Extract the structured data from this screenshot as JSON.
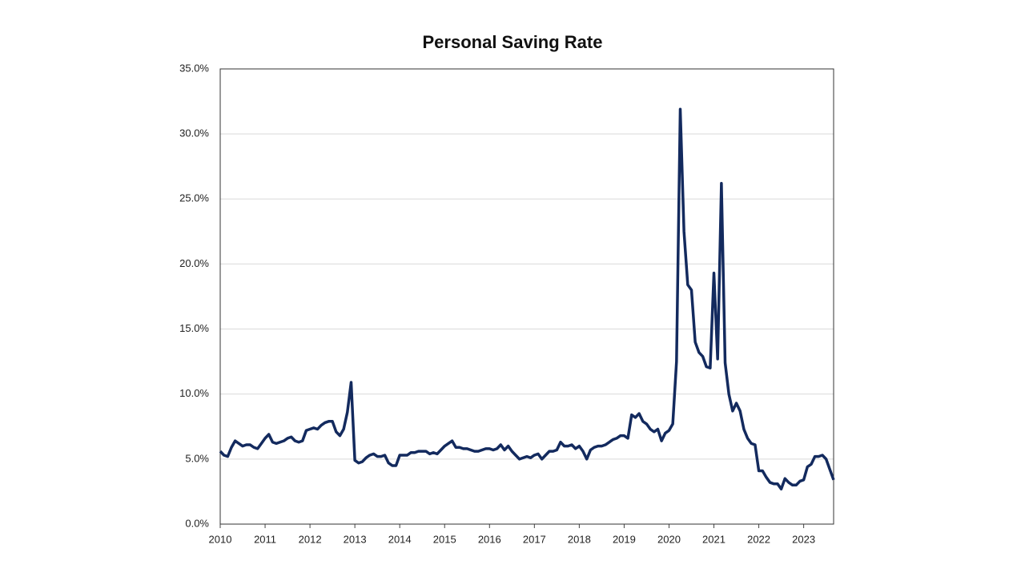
{
  "chart_data": {
    "type": "line",
    "title": "Personal Saving Rate",
    "x": [
      2010,
      2010.083,
      2010.167,
      2010.25,
      2010.333,
      2010.417,
      2010.5,
      2010.583,
      2010.667,
      2010.75,
      2010.833,
      2010.917,
      2011,
      2011.083,
      2011.167,
      2011.25,
      2011.333,
      2011.417,
      2011.5,
      2011.583,
      2011.667,
      2011.75,
      2011.833,
      2011.917,
      2012,
      2012.083,
      2012.167,
      2012.25,
      2012.333,
      2012.417,
      2012.5,
      2012.583,
      2012.667,
      2012.75,
      2012.833,
      2012.917,
      2013,
      2013.083,
      2013.167,
      2013.25,
      2013.333,
      2013.417,
      2013.5,
      2013.583,
      2013.667,
      2013.75,
      2013.833,
      2013.917,
      2014,
      2014.083,
      2014.167,
      2014.25,
      2014.333,
      2014.417,
      2014.5,
      2014.583,
      2014.667,
      2014.75,
      2014.833,
      2014.917,
      2015,
      2015.083,
      2015.167,
      2015.25,
      2015.333,
      2015.417,
      2015.5,
      2015.583,
      2015.667,
      2015.75,
      2015.833,
      2015.917,
      2016,
      2016.083,
      2016.167,
      2016.25,
      2016.333,
      2016.417,
      2016.5,
      2016.583,
      2016.667,
      2016.75,
      2016.833,
      2016.917,
      2017,
      2017.083,
      2017.167,
      2017.25,
      2017.333,
      2017.417,
      2017.5,
      2017.583,
      2017.667,
      2017.75,
      2017.833,
      2017.917,
      2018,
      2018.083,
      2018.167,
      2018.25,
      2018.333,
      2018.417,
      2018.5,
      2018.583,
      2018.667,
      2018.75,
      2018.833,
      2018.917,
      2019,
      2019.083,
      2019.167,
      2019.25,
      2019.333,
      2019.417,
      2019.5,
      2019.583,
      2019.667,
      2019.75,
      2019.833,
      2019.917,
      2020,
      2020.083,
      2020.167,
      2020.25,
      2020.333,
      2020.417,
      2020.5,
      2020.583,
      2020.667,
      2020.75,
      2020.833,
      2020.917,
      2021,
      2021.083,
      2021.167,
      2021.25,
      2021.333,
      2021.417,
      2021.5,
      2021.583,
      2021.667,
      2021.75,
      2021.833,
      2021.917,
      2022,
      2022.083,
      2022.167,
      2022.25,
      2022.333,
      2022.417,
      2022.5,
      2022.583,
      2022.667,
      2022.75,
      2022.833,
      2022.917,
      2023,
      2023.083,
      2023.167,
      2023.25,
      2023.333,
      2023.417,
      2023.5,
      2023.583,
      2023.667
    ],
    "series": [
      {
        "color": "#132a5e",
        "values": [
          5.6,
          5.3,
          5.2,
          5.9,
          6.4,
          6.2,
          6.0,
          6.1,
          6.1,
          5.9,
          5.8,
          6.2,
          6.6,
          6.9,
          6.3,
          6.2,
          6.3,
          6.4,
          6.6,
          6.7,
          6.4,
          6.3,
          6.4,
          7.2,
          7.3,
          7.4,
          7.3,
          7.6,
          7.8,
          7.9,
          7.9,
          7.1,
          6.8,
          7.3,
          8.6,
          10.9,
          4.9,
          4.7,
          4.8,
          5.1,
          5.3,
          5.4,
          5.2,
          5.2,
          5.3,
          4.7,
          4.5,
          4.5,
          5.3,
          5.3,
          5.3,
          5.5,
          5.5,
          5.6,
          5.6,
          5.6,
          5.4,
          5.5,
          5.4,
          5.7,
          6.0,
          6.2,
          6.4,
          5.9,
          5.9,
          5.8,
          5.8,
          5.7,
          5.6,
          5.6,
          5.7,
          5.8,
          5.8,
          5.7,
          5.8,
          6.1,
          5.7,
          6.0,
          5.6,
          5.3,
          5.0,
          5.1,
          5.2,
          5.1,
          5.3,
          5.4,
          5.0,
          5.3,
          5.6,
          5.6,
          5.7,
          6.3,
          6.0,
          6.0,
          6.1,
          5.8,
          6.0,
          5.6,
          5.0,
          5.7,
          5.9,
          6.0,
          6.0,
          6.1,
          6.3,
          6.5,
          6.6,
          6.8,
          6.8,
          6.6,
          8.4,
          8.2,
          8.5,
          7.9,
          7.7,
          7.3,
          7.1,
          7.3,
          6.4,
          7.0,
          7.2,
          7.7,
          12.5,
          31.9,
          22.5,
          18.4,
          18.0,
          14.0,
          13.2,
          12.9,
          12.1,
          12.0,
          19.3,
          12.7,
          26.2,
          12.4,
          10.0,
          8.7,
          9.3,
          8.7,
          7.3,
          6.6,
          6.2,
          6.1,
          4.1,
          4.1,
          3.6,
          3.2,
          3.1,
          3.1,
          2.7,
          3.5,
          3.2,
          3.0,
          3.0,
          3.3,
          3.4,
          4.4,
          4.6,
          5.2,
          5.2,
          5.3,
          5.0,
          4.2,
          3.4
        ]
      }
    ],
    "xlim": [
      2010,
      2023.667
    ],
    "xticks": [
      2010,
      2011,
      2012,
      2013,
      2014,
      2015,
      2016,
      2017,
      2018,
      2019,
      2020,
      2021,
      2022,
      2023
    ],
    "ylim": [
      0,
      35
    ],
    "yticks": [
      {
        "value": 0,
        "label": "0.0%"
      },
      {
        "value": 5,
        "label": "5.0%"
      },
      {
        "value": 10,
        "label": "10.0%"
      },
      {
        "value": 15,
        "label": "15.0%"
      },
      {
        "value": 20,
        "label": "20.0%"
      },
      {
        "value": 25,
        "label": "25.0%"
      },
      {
        "value": 30,
        "label": "30.0%"
      },
      {
        "value": 35,
        "label": "35.0%"
      }
    ],
    "grid": true
  }
}
